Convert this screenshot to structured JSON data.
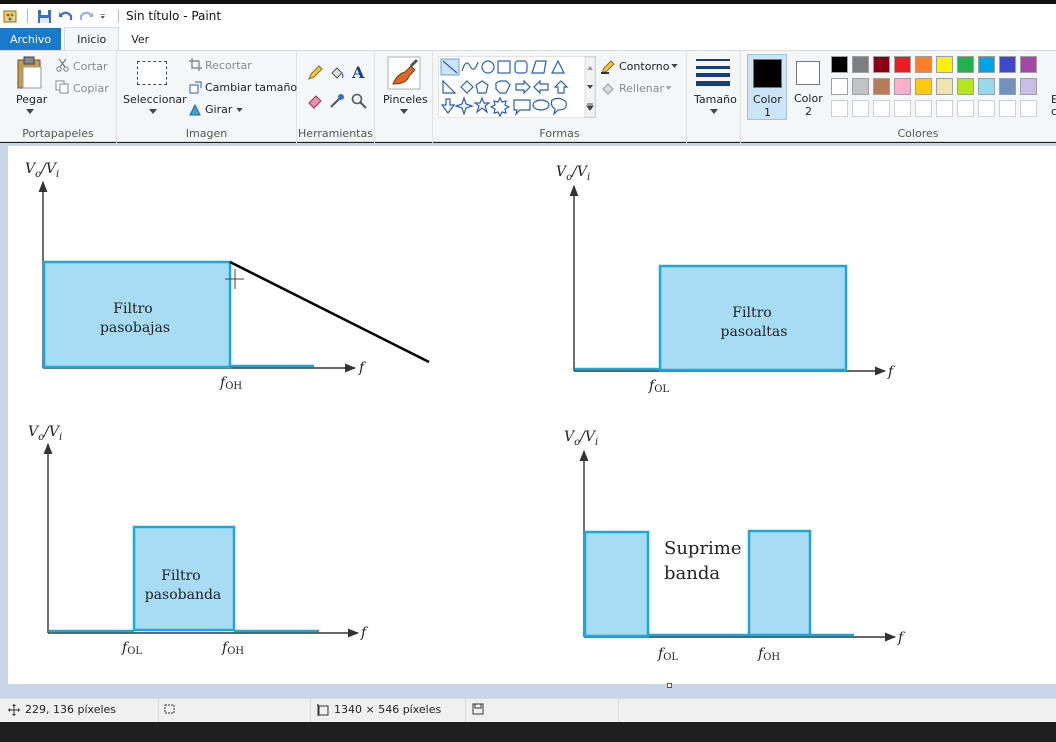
{
  "window": {
    "title": "Sin título - Paint"
  },
  "tabs": {
    "file": "Archivo",
    "home": "Inicio",
    "view": "Ver"
  },
  "ribbon": {
    "clipboard": {
      "label": "Portapapeles",
      "paste": "Pegar",
      "cut": "Cortar",
      "copy": "Copiar"
    },
    "image": {
      "label": "Imagen",
      "select": "Seleccionar",
      "crop": "Recortar",
      "resize": "Cambiar tamaño",
      "rotate": "Girar"
    },
    "tools": {
      "label": "Herramientas",
      "text_tool": "A"
    },
    "brushes": {
      "label": "Pinceles"
    },
    "shapes": {
      "label": "Formas",
      "outline": "Contorno",
      "fill": "Rellenar"
    },
    "size": {
      "label": "Tamaño"
    },
    "color1": {
      "label": "Color",
      "num": "1"
    },
    "color2": {
      "label": "Color",
      "num": "2"
    },
    "colors": {
      "label": "Colores",
      "edit_partial": "E",
      "edit_partial2": "c",
      "row1": [
        "#000000",
        "#7f7f7f",
        "#880015",
        "#ed1c24",
        "#ff7f27",
        "#fff200",
        "#22b14c",
        "#00a2e8",
        "#3f48cc",
        "#a349a4"
      ],
      "row2": [
        "#ffffff",
        "#c3c3c3",
        "#b97a57",
        "#ffaec9",
        "#ffc90e",
        "#efe4b0",
        "#b5e61d",
        "#99d9ea",
        "#7092be",
        "#c8bfe7"
      ]
    }
  },
  "diagrams": {
    "axis_label_vo": "V",
    "axis_label_vo_sub": "o",
    "axis_label_vi": "V",
    "axis_label_vi_sub": "i",
    "freq_label": "f",
    "f_label": "f",
    "sub_oh": "OH",
    "sub_ol": "OL",
    "lowpass": {
      "line1": "Filtro",
      "line2": "pasobajas"
    },
    "highpass": {
      "line1": "Filtro",
      "line2": "pasoaltas"
    },
    "bandpass": {
      "line1": "Filtro",
      "line2": "pasobanda"
    },
    "bandstop": {
      "line1": "Suprime",
      "line2": "banda"
    },
    "fill_color": "#a8dcf5",
    "stroke_color": "#1aa7dc"
  },
  "status": {
    "cursor_pos": "229, 136 píxeles",
    "image_size": "1340 × 546 píxeles"
  }
}
